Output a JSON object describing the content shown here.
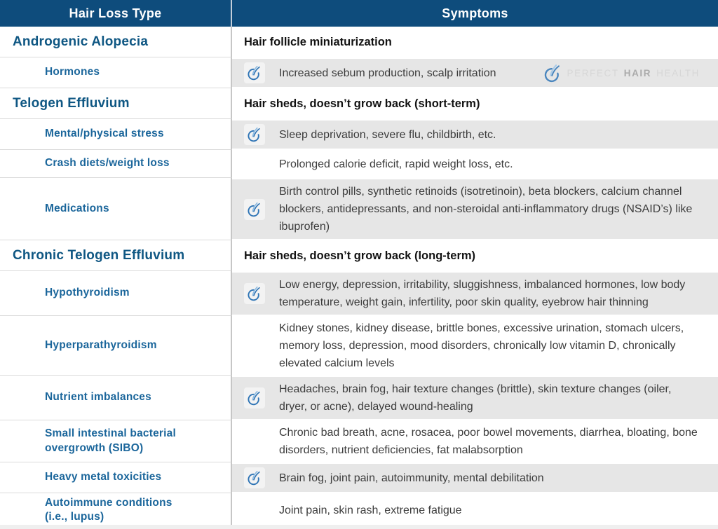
{
  "header": {
    "hair_loss_type": "Hair Loss Type",
    "symptoms": "Symptoms"
  },
  "watermark": {
    "perfect": "PERFECT",
    "hair": "HAIR",
    "health": "HEALTH"
  },
  "colors": {
    "header_bg": "#0E4C7C",
    "section_blue": "#0F5783",
    "sub_blue": "#1B669B",
    "row_gray": "#E6E6E6",
    "icon_blue": "#2E74B5",
    "icon_light_blue": "#8FBCE2",
    "watermark_gray": "#D7D7D7"
  },
  "rows": [
    {
      "kind": "section",
      "cause": [
        "Androgenic Alopecia"
      ],
      "symptom": "Hair follicle miniaturization",
      "icon": false,
      "gray": false,
      "watermark": false
    },
    {
      "kind": "sub",
      "cause": [
        "Hormones"
      ],
      "symptom": "Increased sebum production, scalp irritation",
      "icon": true,
      "gray": true,
      "watermark": true
    },
    {
      "kind": "section",
      "cause": [
        "Telogen Effluvium"
      ],
      "symptom": "Hair sheds, doesn’t grow back (short-term)",
      "icon": false,
      "gray": false,
      "watermark": false
    },
    {
      "kind": "sub",
      "cause": [
        "Mental/physical stress"
      ],
      "symptom": "Sleep deprivation, severe flu, childbirth, etc.",
      "icon": true,
      "gray": true,
      "watermark": false
    },
    {
      "kind": "sub",
      "cause": [
        "Crash diets/weight loss"
      ],
      "symptom": "Prolonged calorie deficit, rapid weight loss, etc.",
      "icon": false,
      "gray": false,
      "watermark": false
    },
    {
      "kind": "sub",
      "cause": [
        "Medications"
      ],
      "symptom": "Birth control pills, synthetic retinoids (isotretinoin), beta blockers, calcium channel blockers, antidepressants, and non-steroidal anti-inflammatory drugs (NSAID’s) like ibuprofen)",
      "icon": true,
      "gray": true,
      "watermark": false
    },
    {
      "kind": "section",
      "cause": [
        "Chronic Telogen Effluvium"
      ],
      "symptom": "Hair sheds, doesn’t grow back (long-term)",
      "icon": false,
      "gray": false,
      "watermark": false
    },
    {
      "kind": "sub",
      "cause": [
        "Hypothyroidism"
      ],
      "symptom": "Low energy, depression, irritability, sluggishness, imbalanced hormones, low body temperature, weight gain, infertility, poor skin quality, eyebrow hair thinning",
      "icon": true,
      "gray": true,
      "watermark": false
    },
    {
      "kind": "sub",
      "cause": [
        "Hyperparathyroidism"
      ],
      "symptom": "Kidney stones, kidney disease, brittle bones, excessive urination, stomach ulcers, memory loss, depression, mood disorders, chronically low vitamin D, chronically elevated calcium levels",
      "icon": false,
      "gray": false,
      "watermark": false
    },
    {
      "kind": "sub",
      "cause": [
        "Nutrient imbalances"
      ],
      "symptom": "Headaches, brain fog, hair texture changes (brittle), skin texture changes (oiler, dryer, or acne), delayed wound-healing",
      "icon": true,
      "gray": true,
      "watermark": false
    },
    {
      "kind": "sub",
      "cause": [
        "Small intestinal bacterial",
        "overgrowth (SIBO)"
      ],
      "symptom": "Chronic bad breath, acne, rosacea, poor bowel movements, diarrhea, bloating, bone disorders, nutrient deficiencies, fat malabsorption",
      "icon": false,
      "gray": false,
      "watermark": false
    },
    {
      "kind": "sub",
      "cause": [
        "Heavy metal toxicities"
      ],
      "symptom": "Brain fog, joint pain, autoimmunity, mental debilitation",
      "icon": true,
      "gray": true,
      "watermark": false
    },
    {
      "kind": "sub",
      "cause": [
        "Autoimmune conditions",
        "(i.e., lupus)"
      ],
      "symptom": "Joint pain, skin rash, extreme fatigue",
      "icon": false,
      "gray": false,
      "watermark": false
    }
  ]
}
